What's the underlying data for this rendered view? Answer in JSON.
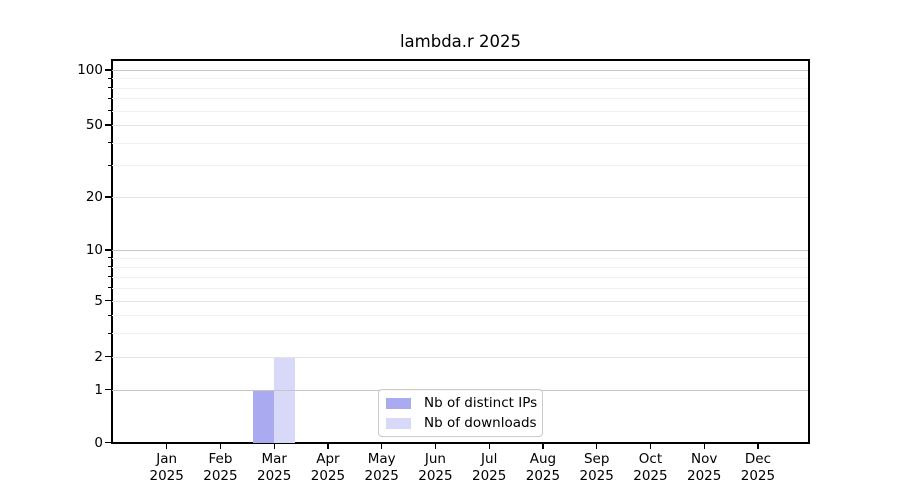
{
  "title": "lambda.r 2025",
  "chart_data": {
    "type": "bar",
    "title": "lambda.r 2025",
    "x_axis": {
      "months": [
        "Jan",
        "Feb",
        "Mar",
        "Apr",
        "May",
        "Jun",
        "Jul",
        "Aug",
        "Sep",
        "Oct",
        "Nov",
        "Dec"
      ],
      "year": "2025"
    },
    "y_axis": {
      "scale": "log(1+x)",
      "ylim": [
        0,
        100
      ],
      "major_ticks": [
        0,
        1,
        2,
        5,
        10,
        20,
        50,
        100
      ],
      "emphasized_ticks": [
        1,
        10,
        100
      ],
      "minor_ticks": [
        3,
        4,
        6,
        7,
        8,
        9,
        30,
        40,
        60,
        70,
        80,
        90
      ],
      "grid": true
    },
    "series": [
      {
        "name": "Nb of distinct IPs",
        "color": "#aaaaf0",
        "values": [
          0,
          0,
          1,
          0,
          0,
          0,
          0,
          0,
          0,
          0,
          0,
          0
        ]
      },
      {
        "name": "Nb of downloads",
        "color": "#d8d8f8",
        "values": [
          0,
          0,
          2,
          0,
          0,
          0,
          0,
          0,
          0,
          0,
          0,
          0
        ]
      }
    ],
    "legend_position": "bottom-center"
  },
  "legend": {
    "items": [
      {
        "label": "Nb of distinct IPs",
        "color": "#aaaaf0"
      },
      {
        "label": "Nb of downloads",
        "color": "#d8d8f8"
      }
    ]
  }
}
